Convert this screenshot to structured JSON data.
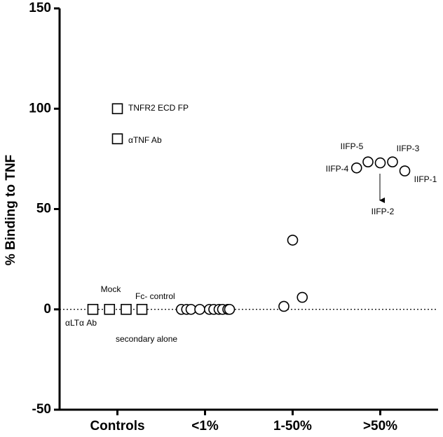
{
  "chart_data": {
    "type": "scatter",
    "ylabel": "% Binding to TNF",
    "xlim": [
      -0.66,
      3.66
    ],
    "xticks": [
      {
        "value": 0,
        "label": "Controls"
      },
      {
        "value": 1,
        "label": "<1%"
      },
      {
        "value": 2,
        "label": "1-50%"
      },
      {
        "value": 3,
        "label": ">50%"
      }
    ],
    "ylim": [
      -50,
      150
    ],
    "yticks": [
      -50,
      0,
      50,
      100,
      150
    ],
    "series": [
      {
        "marker": "square",
        "color": "#000000",
        "x": [
          -0.28,
          -0.09,
          0.1,
          0.28,
          0,
          0
        ],
        "values": [
          0,
          0,
          0,
          0,
          100,
          85
        ]
      },
      {
        "marker": "circle",
        "color": "#000000",
        "x": [
          0.73,
          0.79,
          0.84,
          0.94,
          1.05,
          1.1,
          1.16,
          1.2,
          1.26,
          1.28,
          1.9,
          2.0,
          2.11,
          2.73,
          2.86,
          3.0,
          3.14,
          3.28
        ],
        "values": [
          0,
          0,
          0,
          0,
          0,
          0,
          0,
          0,
          0,
          0,
          1.5,
          34.5,
          6,
          70.5,
          73.5,
          73,
          73.5,
          69
        ]
      }
    ],
    "annotations": [
      "TNFR2 ECD FP",
      "αTNF Ab",
      "Mock",
      "Fc- control",
      "αLTα Ab",
      "secondary alone",
      "IIFP-5",
      "IIFP-3",
      "IIFP-4",
      "IIFP-1",
      "IIFP-2"
    ]
  }
}
